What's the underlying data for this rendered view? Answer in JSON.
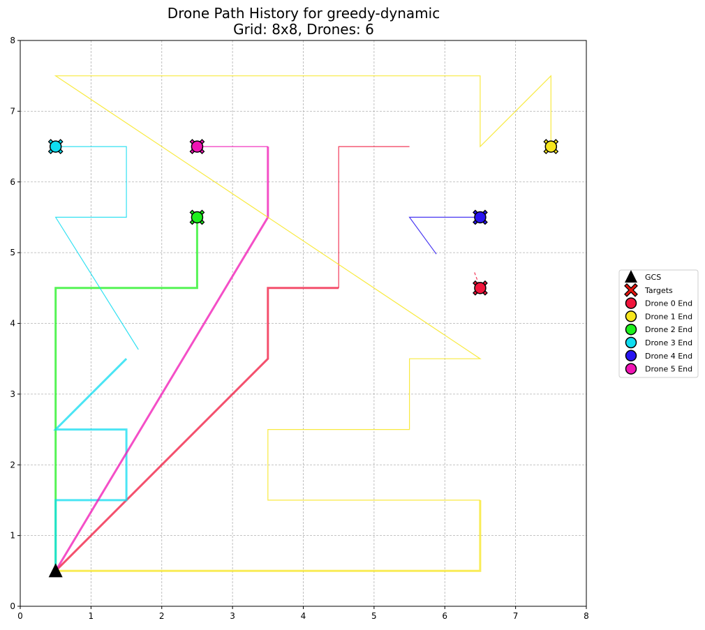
{
  "chart_data": {
    "type": "line",
    "title": "Drone Path History for greedy-dynamic",
    "subtitle": "Grid: 8x8, Drones: 6",
    "xlabel": "",
    "ylabel": "",
    "xlim": [
      0,
      8
    ],
    "ylim": [
      0,
      8
    ],
    "xticks": [
      "0",
      "1",
      "2",
      "3",
      "4",
      "5",
      "6",
      "7",
      "8"
    ],
    "yticks": [
      "0",
      "1",
      "2",
      "3",
      "4",
      "5",
      "6",
      "7",
      "8"
    ],
    "grid": true,
    "legend_position": "center-right outside",
    "gcs": {
      "x": 0.5,
      "y": 0.5
    },
    "series": [
      {
        "name": "Drone 0 End",
        "color": "#f0163c",
        "end": [
          6.5,
          4.5
        ],
        "paths": [
          {
            "weight": "thick",
            "points": [
              [
                0.5,
                0.5
              ],
              [
                3.5,
                3.5
              ],
              [
                3.5,
                4.5
              ],
              [
                4.5,
                4.5
              ]
            ]
          },
          {
            "weight": "thin",
            "points": [
              [
                4.5,
                4.5
              ],
              [
                4.5,
                6.5
              ],
              [
                5.5,
                6.5
              ]
            ]
          },
          {
            "weight": "thin",
            "dashed": true,
            "points": [
              [
                6.42,
                4.72
              ],
              [
                6.5,
                4.5
              ]
            ]
          }
        ]
      },
      {
        "name": "Drone 1 End",
        "color": "#f7e61e",
        "end": [
          7.5,
          6.5
        ],
        "paths": [
          {
            "weight": "thick",
            "points": [
              [
                0.5,
                0.5
              ],
              [
                6.5,
                0.5
              ],
              [
                6.5,
                1.5
              ]
            ]
          },
          {
            "weight": "thin",
            "points": [
              [
                6.5,
                1.5
              ],
              [
                3.5,
                1.5
              ],
              [
                3.5,
                2.5
              ],
              [
                5.5,
                2.5
              ],
              [
                5.5,
                3.5
              ],
              [
                6.5,
                3.5
              ],
              [
                0.5,
                7.5
              ],
              [
                6.5,
                7.5
              ],
              [
                6.5,
                6.5
              ],
              [
                7.5,
                7.5
              ],
              [
                7.5,
                6.5
              ]
            ]
          }
        ]
      },
      {
        "name": "Drone 2 End",
        "color": "#1ef01e",
        "end": [
          2.5,
          5.5
        ],
        "paths": [
          {
            "weight": "thick",
            "points": [
              [
                0.5,
                0.5
              ],
              [
                0.5,
                4.5
              ],
              [
                2.5,
                4.5
              ],
              [
                2.5,
                5.5
              ]
            ]
          }
        ]
      },
      {
        "name": "Drone 3 End",
        "color": "#0fdcf0",
        "end": [
          0.5,
          6.5
        ],
        "paths": [
          {
            "weight": "thick",
            "points": [
              [
                0.5,
                0.5
              ],
              [
                0.5,
                1.5
              ],
              [
                1.5,
                1.5
              ],
              [
                1.5,
                2.5
              ],
              [
                0.5,
                2.5
              ],
              [
                1.5,
                3.5
              ]
            ]
          },
          {
            "weight": "thin",
            "points": [
              [
                1.67,
                3.63
              ],
              [
                0.5,
                5.5
              ],
              [
                1.5,
                5.5
              ],
              [
                1.5,
                6.5
              ],
              [
                0.5,
                6.5
              ]
            ]
          }
        ]
      },
      {
        "name": "Drone 4 End",
        "color": "#2814f0",
        "end": [
          6.5,
          5.5
        ],
        "paths": [
          {
            "weight": "thin",
            "points": [
              [
                5.88,
                4.98
              ],
              [
                5.5,
                5.5
              ],
              [
                6.5,
                5.5
              ]
            ]
          }
        ]
      },
      {
        "name": "Drone 5 End",
        "color": "#f014b4",
        "end": [
          2.5,
          6.5
        ],
        "paths": [
          {
            "weight": "thick",
            "points": [
              [
                0.5,
                0.5
              ],
              [
                3.5,
                5.5
              ],
              [
                3.5,
                6.5
              ]
            ]
          },
          {
            "weight": "thin",
            "points": [
              [
                3.5,
                6.5
              ],
              [
                2.5,
                6.5
              ]
            ]
          }
        ]
      }
    ],
    "legend": [
      {
        "label": "GCS",
        "marker": "triangle",
        "color": "#000000"
      },
      {
        "label": "Targets",
        "marker": "x",
        "color": "#e8150e"
      },
      {
        "label": "Drone 0 End",
        "marker": "circle",
        "color": "#f0163c"
      },
      {
        "label": "Drone 1 End",
        "marker": "circle",
        "color": "#f7e61e"
      },
      {
        "label": "Drone 2 End",
        "marker": "circle",
        "color": "#1ef01e"
      },
      {
        "label": "Drone 3 End",
        "marker": "circle",
        "color": "#0fdcf0"
      },
      {
        "label": "Drone 4 End",
        "marker": "circle",
        "color": "#2814f0"
      },
      {
        "label": "Drone 5 End",
        "marker": "circle",
        "color": "#f014b4"
      }
    ]
  }
}
